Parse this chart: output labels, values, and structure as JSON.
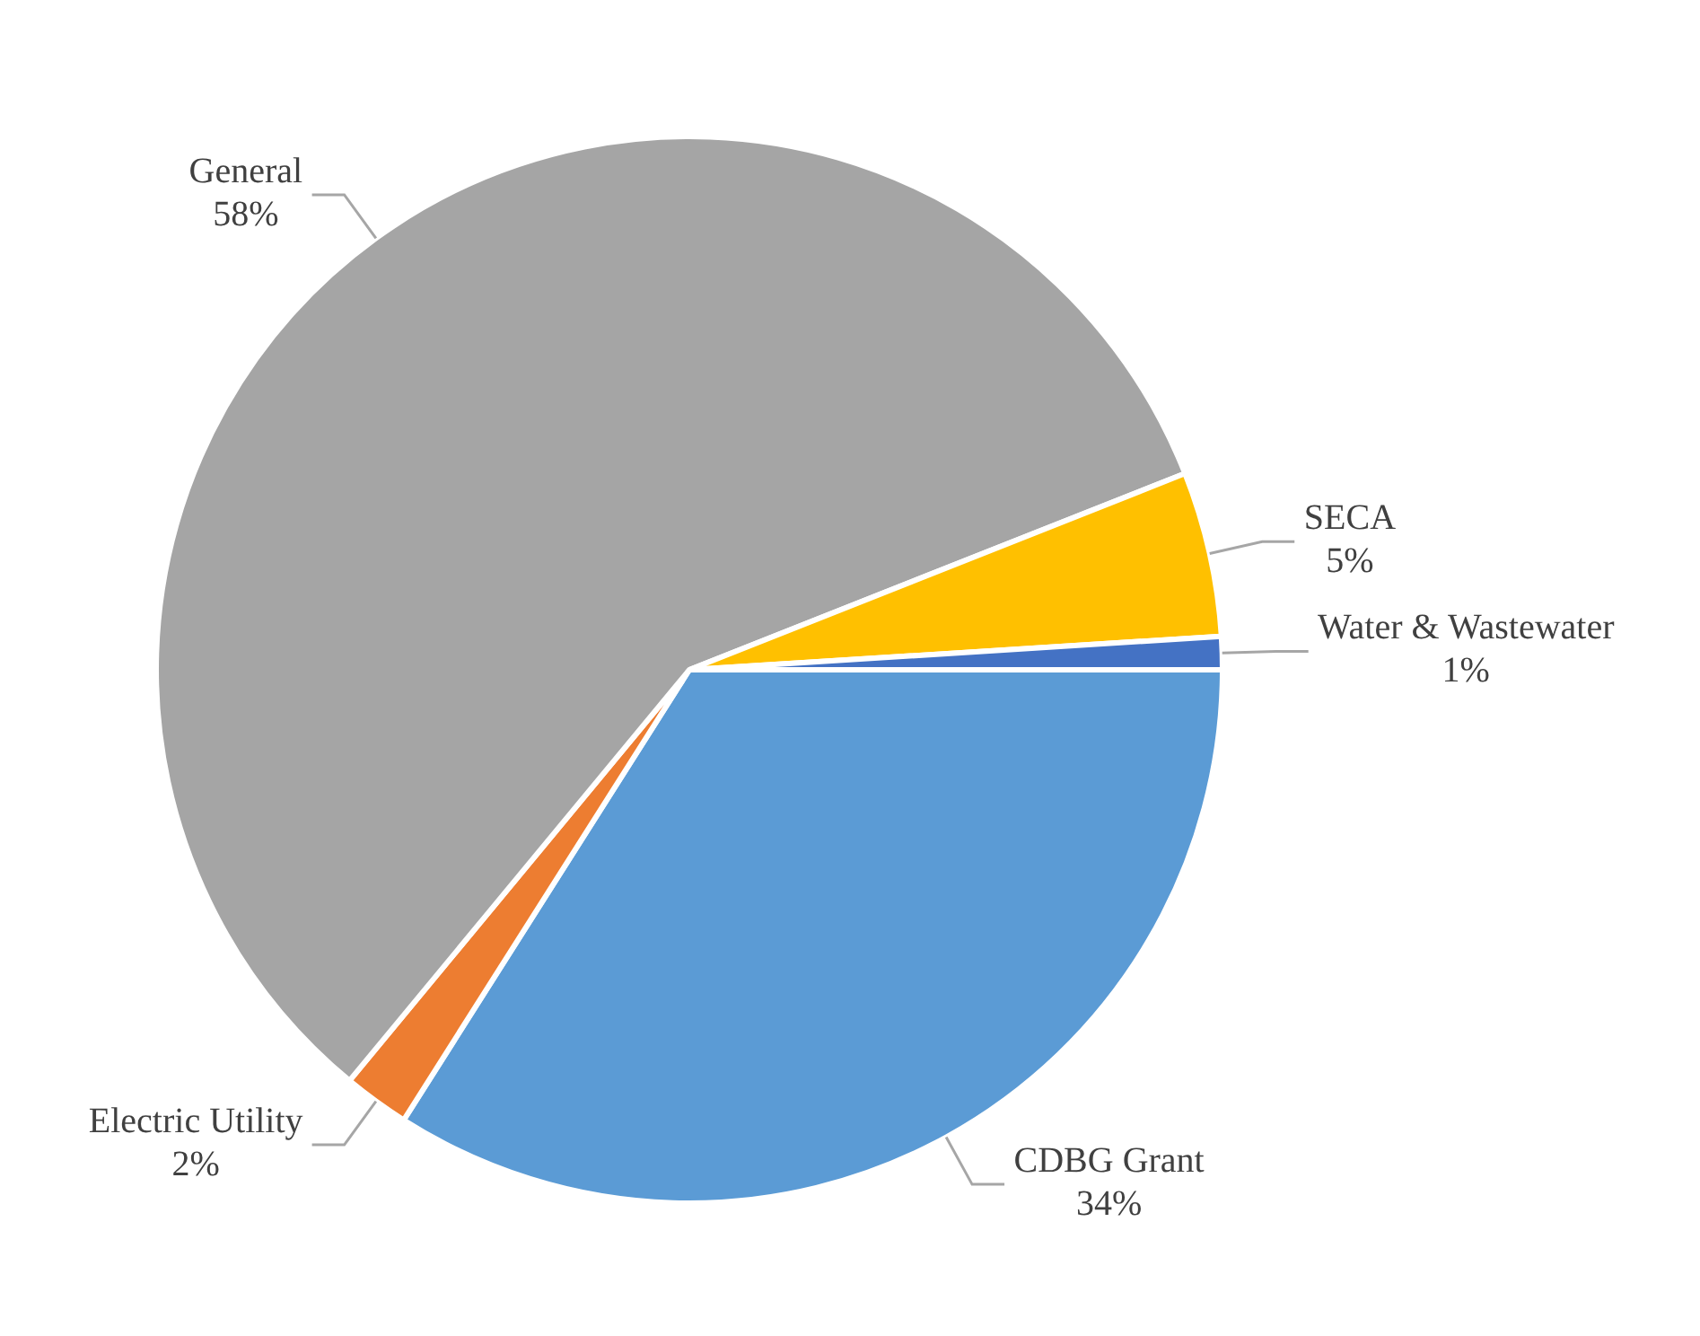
{
  "chart_data": {
    "type": "pie",
    "categories": [
      "CDBG Grant",
      "Electric Utility",
      "General",
      "SECA",
      "Water & Wastewater"
    ],
    "values": [
      34,
      2,
      58,
      5,
      1
    ],
    "colors": [
      "#5b9bd5",
      "#ed7d31",
      "#a5a5a5",
      "#ffc000",
      "#4472c4"
    ],
    "value_labels": [
      "34%",
      "2%",
      "58%",
      "5%",
      "1%"
    ],
    "legend": false
  }
}
